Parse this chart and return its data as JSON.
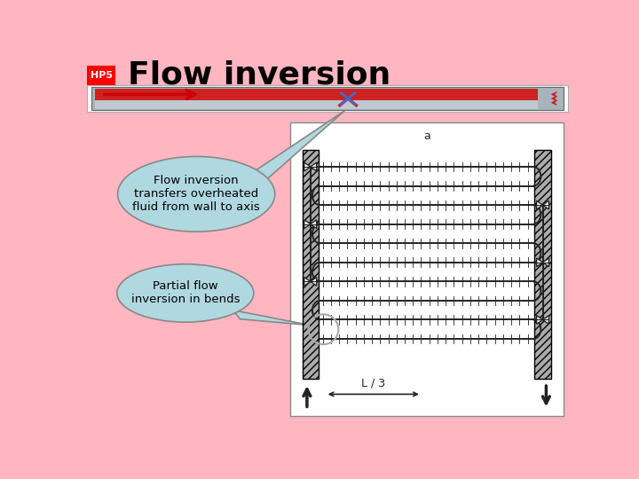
{
  "bg_color": "#ffb6c1",
  "title": "Flow inversion",
  "hp_label": "HP5",
  "hp_bg": "#ff0000",
  "hp_fg": "#ffffff",
  "bubble1_text": "Flow inversion\ntransfers overheated\nfluid from wall to axis",
  "bubble2_text": "Partial flow\ninversion in bends",
  "bubble_color": "#b0d8e0",
  "bubble_edge": "#888888",
  "pipe_bg": "#ffffff",
  "pipe_outer": "#a8b4bc",
  "pipe_red": "#cc2222",
  "pipe_gray": "#c0c8d0",
  "coil_color": "#222222",
  "diagram_bg": "#ffffff",
  "valve_color": "#111111",
  "arrow_color": "#cc0000"
}
